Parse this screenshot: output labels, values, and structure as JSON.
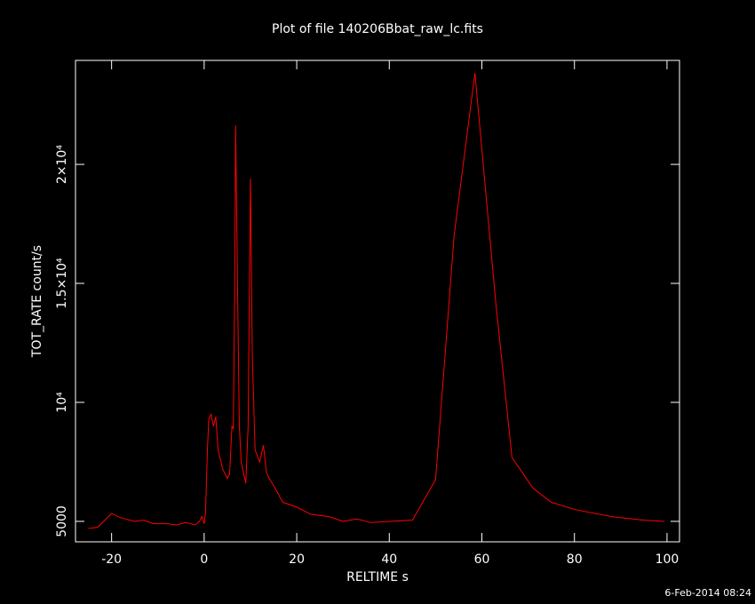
{
  "chart_data": {
    "type": "line",
    "title": "Plot of file 140206Bbat_raw_lc.fits",
    "x_label": "RELTIME  s",
    "y_label": "TOT_RATE  count/s",
    "timestamp": "6-Feb-2014 08:24",
    "color": "#ff0000",
    "grid": false,
    "xlim": [
      -27.8,
      102.7
    ],
    "ylim": [
      4140,
      24370
    ],
    "xticks": [
      -20,
      0,
      20,
      40,
      60,
      80,
      100
    ],
    "yticks": [
      5000,
      {
        "value": 10000,
        "label": "10⁴"
      },
      {
        "value": 15000,
        "label": "1.5×10⁴"
      },
      {
        "value": 20000,
        "label": "2×10⁴"
      }
    ],
    "x": [
      -25,
      -23,
      -20,
      -18,
      -15,
      -13,
      -11,
      -8,
      -6,
      -4,
      -2,
      -1,
      -0.5,
      0,
      0.3,
      0.7,
      1,
      1.5,
      2,
      2.5,
      3,
      4,
      5,
      5.5,
      6,
      6.3,
      6.6,
      6.8,
      7.2,
      7.6,
      8,
      9,
      9.5,
      10,
      10.4,
      11,
      12,
      12.8,
      13.5,
      15,
      17,
      20,
      23,
      27,
      30,
      33,
      36,
      40,
      45,
      50,
      54,
      58.5,
      63,
      66.5,
      71,
      75,
      80,
      88,
      95,
      99.5
    ],
    "values": [
      4700,
      4750,
      5330,
      5150,
      5000,
      5050,
      4900,
      4900,
      4850,
      4950,
      4850,
      5000,
      5200,
      4900,
      5400,
      8000,
      9300,
      9500,
      9000,
      9400,
      8000,
      7200,
      6800,
      7000,
      9000,
      8900,
      15000,
      21640,
      15000,
      9000,
      7500,
      6600,
      9000,
      19400,
      12000,
      8000,
      7500,
      8200,
      7000,
      6500,
      5800,
      5600,
      5300,
      5200,
      5000,
      5100,
      4950,
      5000,
      5050,
      6750,
      17000,
      23840,
      14200,
      7690,
      6400,
      5800,
      5500,
      5200,
      5050,
      5000
    ]
  }
}
